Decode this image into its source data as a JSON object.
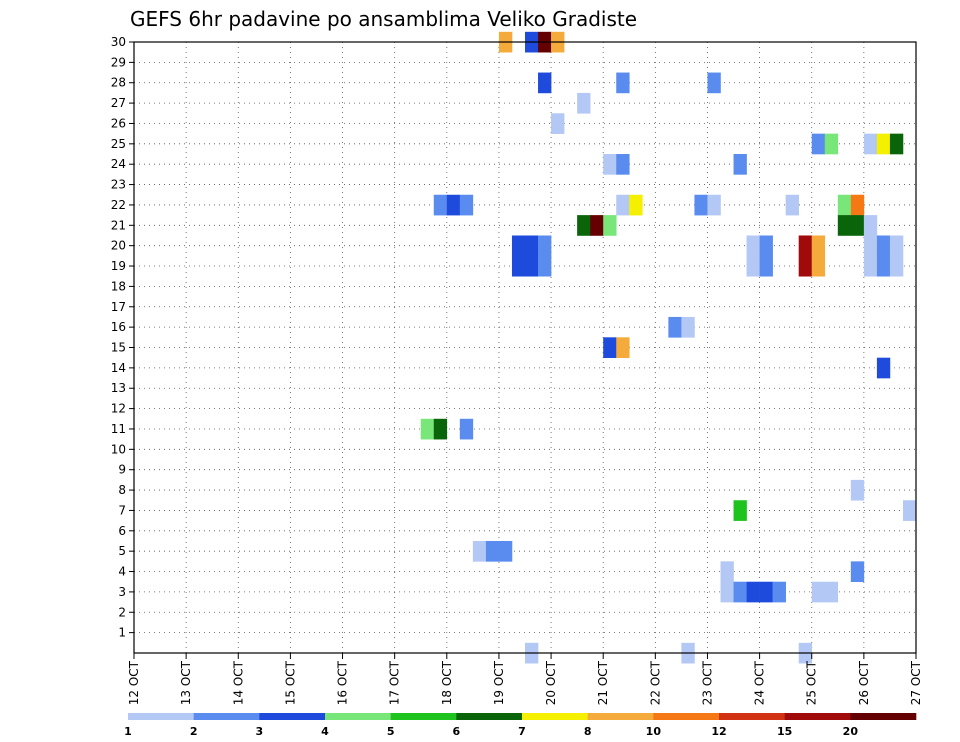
{
  "chart_data": {
    "type": "heatmap",
    "title": "GEFS 6hr padavine po ansamblima Veliko Gradiste",
    "xlabel": "",
    "ylabel": "",
    "x_ticks": [
      "12 OCT",
      "13 OCT",
      "14 OCT",
      "15 OCT",
      "16 OCT",
      "17 OCT",
      "18 OCT",
      "19 OCT",
      "20 OCT",
      "21 OCT",
      "22 OCT",
      "23 OCT",
      "24 OCT",
      "25 OCT",
      "26 OCT",
      "27 OCT"
    ],
    "y_ticks": [
      "1",
      "2",
      "3",
      "4",
      "5",
      "6",
      "7",
      "8",
      "9",
      "10",
      "11",
      "12",
      "13",
      "14",
      "15",
      "16",
      "17",
      "18",
      "19",
      "20",
      "21",
      "22",
      "23",
      "24",
      "25",
      "26",
      "27",
      "28",
      "29",
      "30"
    ],
    "xlim": [
      0,
      60
    ],
    "ylim": [
      0,
      30
    ],
    "grid": true,
    "colorbar": {
      "labels": [
        "1",
        "2",
        "3",
        "4",
        "5",
        "6",
        "7",
        "8",
        "10",
        "12",
        "15",
        "20"
      ],
      "colors": [
        "#b4c8f5",
        "#5a8cf0",
        "#1e4bdc",
        "#78e678",
        "#1ec31e",
        "#0a640a",
        "#f5f000",
        "#f5aa3c",
        "#f57814",
        "#d23214",
        "#a00a0a",
        "#640000"
      ]
    },
    "cells": [
      {
        "t": 28.5,
        "m": 30,
        "c": 7
      },
      {
        "t": 30.5,
        "m": 30,
        "c": 2
      },
      {
        "t": 31.5,
        "m": 30,
        "c": 11
      },
      {
        "t": 32.5,
        "m": 30,
        "c": 7
      },
      {
        "t": 31.5,
        "m": 28,
        "c": 2
      },
      {
        "t": 37.5,
        "m": 28,
        "c": 1
      },
      {
        "t": 44.5,
        "m": 28,
        "c": 1
      },
      {
        "t": 34.5,
        "m": 27,
        "c": 0
      },
      {
        "t": 32.5,
        "m": 26,
        "c": 0
      },
      {
        "t": 52.5,
        "m": 25,
        "c": 1
      },
      {
        "t": 53.5,
        "m": 25,
        "c": 3
      },
      {
        "t": 56.5,
        "m": 25,
        "c": 0
      },
      {
        "t": 57.5,
        "m": 25,
        "c": 6
      },
      {
        "t": 58.5,
        "m": 25,
        "c": 5
      },
      {
        "t": 36.5,
        "m": 24,
        "c": 0
      },
      {
        "t": 37.5,
        "m": 24,
        "c": 1
      },
      {
        "t": 46.5,
        "m": 24,
        "c": 1
      },
      {
        "t": 23.5,
        "m": 22,
        "c": 1
      },
      {
        "t": 24.5,
        "m": 22,
        "c": 2
      },
      {
        "t": 25.5,
        "m": 22,
        "c": 1
      },
      {
        "t": 37.5,
        "m": 22,
        "c": 0
      },
      {
        "t": 38.5,
        "m": 22,
        "c": 6
      },
      {
        "t": 43.5,
        "m": 22,
        "c": 1
      },
      {
        "t": 44.5,
        "m": 22,
        "c": 0
      },
      {
        "t": 50.5,
        "m": 22,
        "c": 0
      },
      {
        "t": 54.5,
        "m": 22,
        "c": 3
      },
      {
        "t": 55.5,
        "m": 22,
        "c": 8
      },
      {
        "t": 34.5,
        "m": 21,
        "c": 5
      },
      {
        "t": 35.5,
        "m": 21,
        "c": 11
      },
      {
        "t": 36.5,
        "m": 21,
        "c": 3
      },
      {
        "t": 54.5,
        "m": 21,
        "c": 5
      },
      {
        "t": 55.5,
        "m": 21,
        "c": 5
      },
      {
        "t": 56.5,
        "m": 21,
        "c": 0
      },
      {
        "t": 29.5,
        "m": 20,
        "c": 2
      },
      {
        "t": 30.5,
        "m": 20,
        "c": 2
      },
      {
        "t": 31.5,
        "m": 20,
        "c": 1
      },
      {
        "t": 47.5,
        "m": 20,
        "c": 0
      },
      {
        "t": 48.5,
        "m": 20,
        "c": 1
      },
      {
        "t": 51.5,
        "m": 20,
        "c": 10
      },
      {
        "t": 52.5,
        "m": 20,
        "c": 7
      },
      {
        "t": 56.5,
        "m": 20,
        "c": 0
      },
      {
        "t": 57.5,
        "m": 20,
        "c": 1
      },
      {
        "t": 58.5,
        "m": 20,
        "c": 0
      },
      {
        "t": 29.5,
        "m": 19,
        "c": 2
      },
      {
        "t": 30.5,
        "m": 19,
        "c": 2
      },
      {
        "t": 31.5,
        "m": 19,
        "c": 1
      },
      {
        "t": 47.5,
        "m": 19,
        "c": 0
      },
      {
        "t": 48.5,
        "m": 19,
        "c": 1
      },
      {
        "t": 51.5,
        "m": 19,
        "c": 10
      },
      {
        "t": 52.5,
        "m": 19,
        "c": 7
      },
      {
        "t": 56.5,
        "m": 19,
        "c": 0
      },
      {
        "t": 57.5,
        "m": 19,
        "c": 1
      },
      {
        "t": 58.5,
        "m": 19,
        "c": 0
      },
      {
        "t": 41.5,
        "m": 16,
        "c": 1
      },
      {
        "t": 42.5,
        "m": 16,
        "c": 0
      },
      {
        "t": 36.5,
        "m": 15,
        "c": 2
      },
      {
        "t": 37.5,
        "m": 15,
        "c": 7
      },
      {
        "t": 57.5,
        "m": 14,
        "c": 2
      },
      {
        "t": 22.5,
        "m": 11,
        "c": 3
      },
      {
        "t": 23.5,
        "m": 11,
        "c": 5
      },
      {
        "t": 25.5,
        "m": 11,
        "c": 1
      },
      {
        "t": 55.5,
        "m": 8,
        "c": 0
      },
      {
        "t": 46.5,
        "m": 7,
        "c": 4
      },
      {
        "t": 59.5,
        "m": 7,
        "c": 0
      },
      {
        "t": 26.5,
        "m": 5,
        "c": 0
      },
      {
        "t": 27.5,
        "m": 5,
        "c": 1
      },
      {
        "t": 28.5,
        "m": 5,
        "c": 1
      },
      {
        "t": 55.5,
        "m": 4,
        "c": 1
      },
      {
        "t": 45.5,
        "m": 4,
        "c": 0
      },
      {
        "t": 45.5,
        "m": 3,
        "c": 0
      },
      {
        "t": 46.5,
        "m": 3,
        "c": 1
      },
      {
        "t": 47.5,
        "m": 3,
        "c": 2
      },
      {
        "t": 48.5,
        "m": 3,
        "c": 2
      },
      {
        "t": 49.5,
        "m": 3,
        "c": 1
      },
      {
        "t": 52.5,
        "m": 3,
        "c": 0
      },
      {
        "t": 53.5,
        "m": 3,
        "c": 0
      },
      {
        "t": 30.5,
        "m": 0,
        "c": 0
      },
      {
        "t": 42.5,
        "m": 0,
        "c": 0
      },
      {
        "t": 51.5,
        "m": 0,
        "c": 0
      }
    ]
  }
}
